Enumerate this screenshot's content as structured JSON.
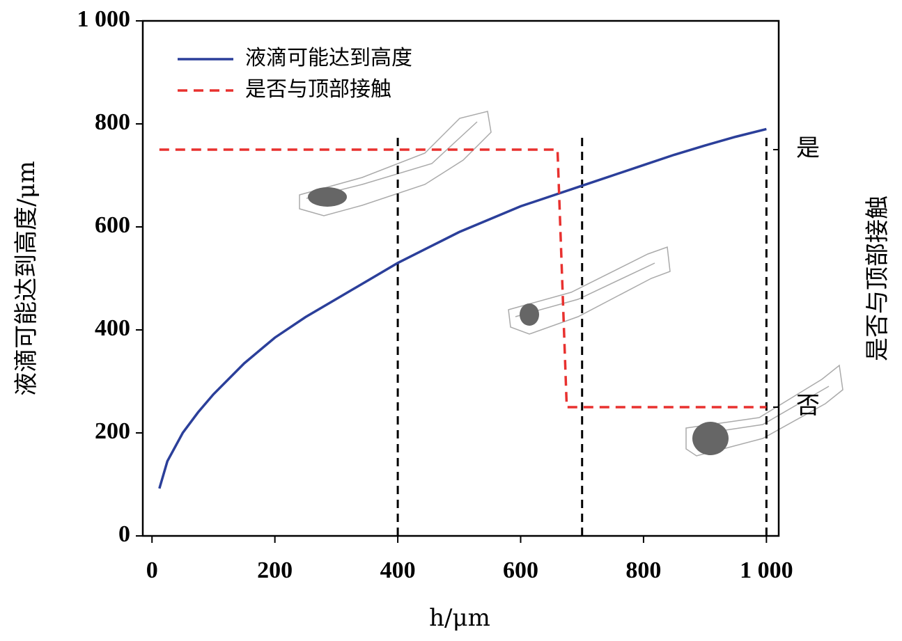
{
  "chart_data": {
    "type": "line",
    "x_label": "h/μm",
    "y_label": "液滴可能达到高度/μm",
    "y2_label": "是否与顶部接触",
    "xlim": [
      -15,
      1020
    ],
    "xticks": [
      0,
      200,
      400,
      600,
      800,
      {
        "value": 1000,
        "label": "1 000"
      }
    ],
    "ylim": [
      0,
      1000
    ],
    "yticks": [
      0,
      200,
      400,
      600,
      800,
      {
        "value": 1000,
        "label": "1 000"
      }
    ],
    "y2lim": [
      0,
      1000
    ],
    "y2ticks": [
      {
        "value": 750,
        "label": "是"
      },
      {
        "value": 250,
        "label": "否"
      }
    ],
    "vlines": [
      400,
      700,
      1000
    ],
    "series": [
      {
        "name": "液滴可能达到高度",
        "color": "#2b3f9a",
        "style": "solid",
        "x": [
          12,
          25,
          50,
          75,
          100,
          150,
          200,
          250,
          300,
          350,
          400,
          450,
          500,
          550,
          600,
          650,
          700,
          750,
          800,
          850,
          900,
          950,
          1000
        ],
        "values": [
          92,
          145,
          200,
          240,
          275,
          335,
          385,
          425,
          460,
          495,
          530,
          560,
          590,
          615,
          640,
          660,
          680,
          700,
          720,
          740,
          758,
          775,
          790
        ]
      },
      {
        "name": "是否与顶部接触",
        "color": "#e8312f",
        "style": "dashed",
        "axis": "y2",
        "x": [
          12,
          660,
          675,
          1000
        ],
        "values": [
          750,
          750,
          250,
          250
        ]
      }
    ]
  }
}
